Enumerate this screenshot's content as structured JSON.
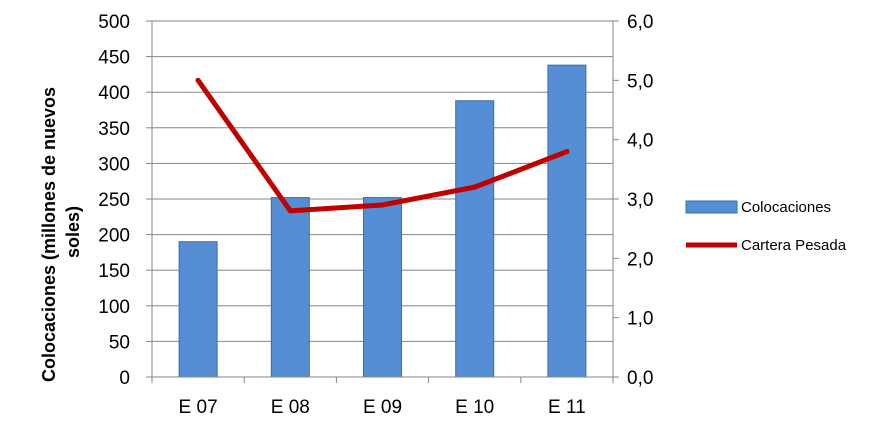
{
  "chart_data": {
    "type": "bar",
    "categories": [
      "E 07",
      "E 08",
      "E 09",
      "E 10",
      "E 11"
    ],
    "series": [
      {
        "name": "Colocaciones",
        "type": "bar",
        "axis": "left",
        "values": [
          190,
          252,
          252,
          388,
          438
        ],
        "color": "#558ED5"
      },
      {
        "name": "Cartera Pesada",
        "type": "line",
        "axis": "right",
        "values": [
          5.0,
          2.8,
          2.9,
          3.2,
          3.8
        ],
        "color": "#C00000"
      }
    ],
    "ylabel_lines": [
      "Colocaciones (millones de nuevos",
      "soles)"
    ],
    "ylim": [
      0,
      500
    ],
    "yticks": [
      "0",
      "50",
      "100",
      "150",
      "200",
      "250",
      "300",
      "350",
      "400",
      "450",
      "500"
    ],
    "y2lim": [
      0,
      6
    ],
    "y2ticks": [
      "0,0",
      "1,0",
      "2,0",
      "3,0",
      "4,0",
      "5,0",
      "6,0"
    ],
    "grid": "horizontal",
    "legend_position": "right"
  }
}
